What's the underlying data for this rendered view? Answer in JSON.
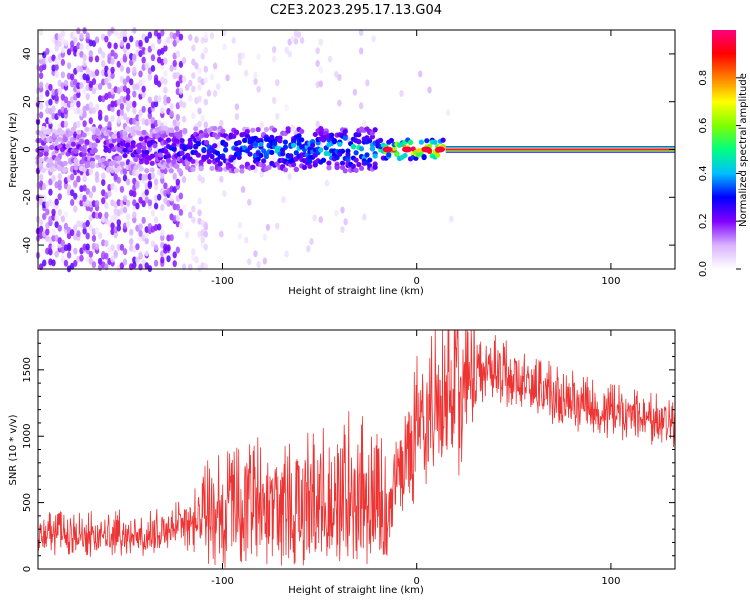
{
  "title": "C2E3.2023.295.17.13.G04",
  "colors": {
    "snr_line": "#ee3333",
    "axis": "#000000"
  },
  "chart_data": [
    {
      "type": "heatmap",
      "xlabel": "Height of straight line (km)",
      "ylabel": "Frequency (Hz)",
      "xlim": [
        -195,
        133
      ],
      "ylim": [
        -50,
        50
      ],
      "xticks": [
        -100,
        0,
        100
      ],
      "xtick_labels": [
        "-100",
        "0",
        "100"
      ],
      "yticks": [
        -40,
        -20,
        0,
        20,
        40
      ],
      "ytick_labels": [
        "-40",
        "-20",
        "0",
        "20",
        "40"
      ],
      "colorbar": {
        "label": "Normalized spectral amplitude",
        "range": [
          0,
          1
        ],
        "ticks": [
          0,
          0.2,
          0.4,
          0.6,
          0.8
        ],
        "tick_labels": [
          "0.0",
          "0.2",
          "0.4",
          "0.6",
          "0.8"
        ],
        "colormap": [
          "#ffffff",
          "#d9b3ff",
          "#8000ff",
          "#0000ff",
          "#00c0ff",
          "#00ff80",
          "#80ff00",
          "#ffff00",
          "#ff8000",
          "#ff0000",
          "#ff0080"
        ]
      },
      "ridge": [
        {
          "x": -195,
          "freq": 0,
          "amp": 0.2
        },
        {
          "x": -150,
          "freq": 0,
          "amp": 0.25
        },
        {
          "x": -110,
          "freq": 0,
          "amp": 0.35
        },
        {
          "x": -60,
          "freq": 0,
          "amp": 0.45
        },
        {
          "x": -20,
          "freq": 0,
          "amp": 0.5
        },
        {
          "x": -10,
          "freq": 0,
          "amp": 0.9
        },
        {
          "x": 15,
          "freq": 0,
          "amp": 0.95
        },
        {
          "x": 133,
          "freq": 0,
          "amp": 1.0
        }
      ]
    },
    {
      "type": "line",
      "xlabel": "Height of straight line (km)",
      "ylabel": "SNR (10 * v/v)",
      "xlim": [
        -195,
        133
      ],
      "ylim": [
        0,
        1800
      ],
      "xticks": [
        -100,
        0,
        100
      ],
      "xtick_labels": [
        "-100",
        "0",
        "100"
      ],
      "yticks": [
        0,
        500,
        1000,
        1500
      ],
      "ytick_labels": [
        "0",
        "500",
        "1000",
        "1500"
      ],
      "series": [
        {
          "trend": [
            {
              "x": -195,
              "y": 250
            },
            {
              "x": -160,
              "y": 250
            },
            {
              "x": -125,
              "y": 280
            },
            {
              "x": -105,
              "y": 400
            },
            {
              "x": -80,
              "y": 420
            },
            {
              "x": -60,
              "y": 430
            },
            {
              "x": -45,
              "y": 520
            },
            {
              "x": -30,
              "y": 500
            },
            {
              "x": -15,
              "y": 400
            },
            {
              "x": -10,
              "y": 700
            },
            {
              "x": 0,
              "y": 1000
            },
            {
              "x": 15,
              "y": 1250
            },
            {
              "x": 30,
              "y": 1450
            },
            {
              "x": 40,
              "y": 1500
            },
            {
              "x": 60,
              "y": 1350
            },
            {
              "x": 90,
              "y": 1200
            },
            {
              "x": 133,
              "y": 1080
            }
          ]
        }
      ]
    }
  ]
}
